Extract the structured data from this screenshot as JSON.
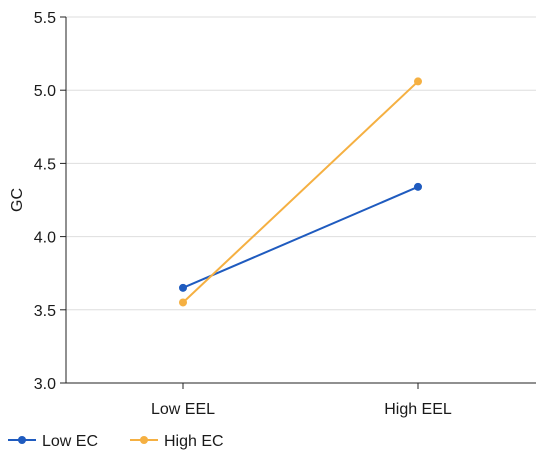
{
  "chart_data": {
    "type": "line",
    "title": "",
    "xlabel": "",
    "ylabel": "GC",
    "categories": [
      "Low EEL",
      "High EEL"
    ],
    "ylim": [
      3.0,
      5.5
    ],
    "yticks": [
      "3.0",
      "3.5",
      "4.0",
      "4.5",
      "5.0",
      "5.5"
    ],
    "grid": "horizontal",
    "legend_position": "bottom-left",
    "series": [
      {
        "name": "Low EC",
        "color": "#1f5bbf",
        "values": [
          3.65,
          4.34
        ]
      },
      {
        "name": "High EC",
        "color": "#f5b042",
        "values": [
          3.55,
          5.06
        ]
      }
    ]
  }
}
